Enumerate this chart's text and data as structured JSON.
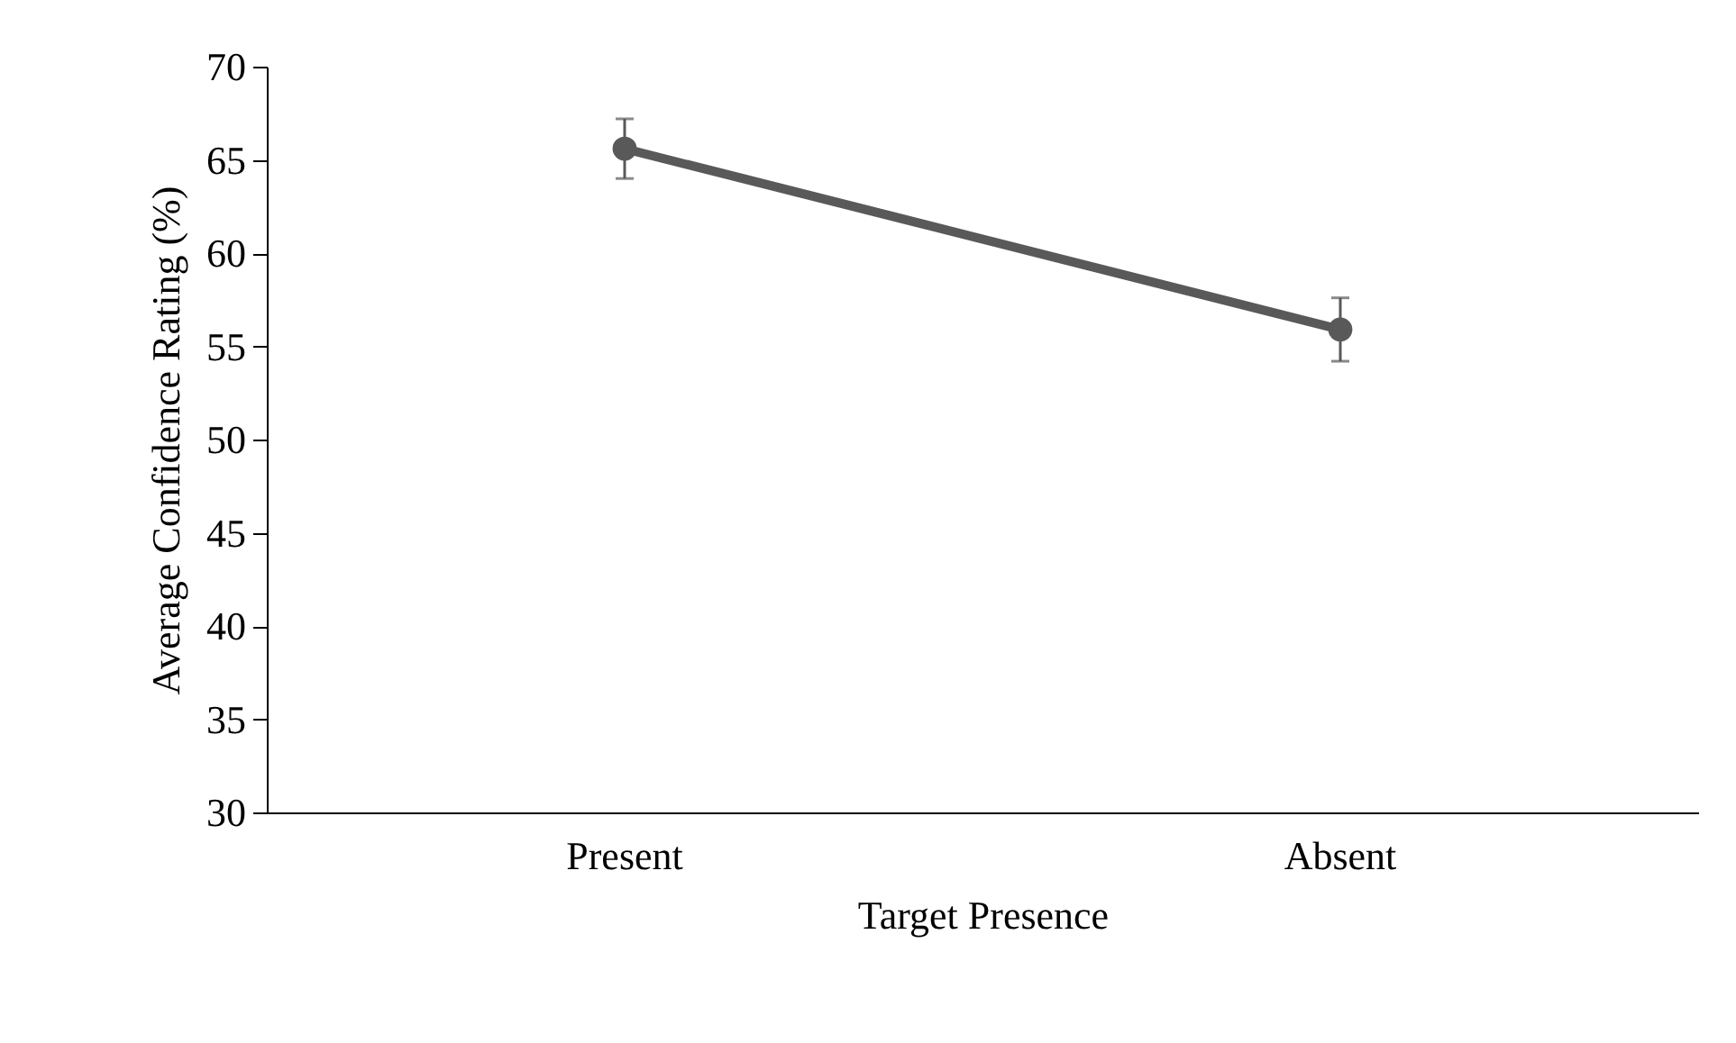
{
  "chart_data": {
    "type": "line",
    "xlabel": "Target Presence",
    "ylabel": "Average Confidence Rating (%)",
    "categories": [
      "Present",
      "Absent"
    ],
    "series": [
      {
        "color": "#595959",
        "values": [
          65.6,
          55.9
        ],
        "errors": [
          1.6,
          1.7
        ]
      }
    ],
    "ylim": [
      30,
      70
    ],
    "yticks": [
      30,
      35,
      40,
      45,
      50,
      55,
      60,
      65,
      70
    ],
    "grid": false,
    "marker": "circle",
    "line_style": "solid"
  }
}
